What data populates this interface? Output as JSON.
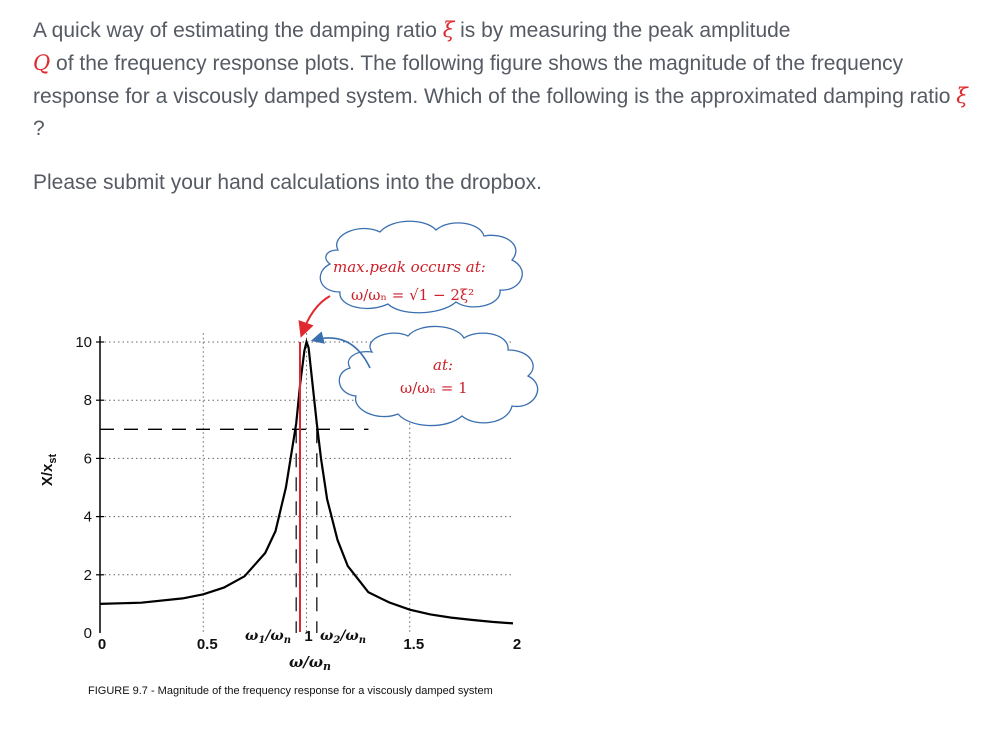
{
  "question": {
    "part1": "A quick way of estimating the damping ratio ",
    "xi_symbol": "ξ",
    "part2": " is by measuring the peak amplitude",
    "q_symbol": "Q",
    "part3": " of the frequency response plots. The following figure shows the magnitude of the frequency response for a viscously damped system. Which of the following is the approximated damping ratio ",
    "xi_symbol2": "ξ",
    "part4": " ?"
  },
  "instruction": "Please submit your hand calculations into the dropbox.",
  "figure": {
    "y_axis_label": "X/x",
    "y_axis_sub": "st",
    "x_axis_label": "ω/ω",
    "x_axis_sub": "n",
    "x_tick_omega1": "ω",
    "x_tick_omega1_sub": "1",
    "x_tick_omega1_den": "/ω",
    "x_tick_omega1_den_sub": "n",
    "x_tick_omega2": "ω",
    "x_tick_omega2_sub": "2",
    "x_tick_omega2_den": "/ω",
    "x_tick_omega2_den_sub": "n",
    "caption": "FIGURE 9.7 - Magnitude of the frequency response for a viscously damped system",
    "cloud_peak_line1": "max.peak occurs at:",
    "cloud_peak_line2": "ω/ωₙ = √1 − 2ξ²",
    "cloud_at_line1": "at:",
    "cloud_at_line2": "ω/ωₙ = 1",
    "colors": {
      "curve": "#000000",
      "annotation": "#e0282e",
      "cloud_outline": "#3a6fb0",
      "text": "#555a63"
    }
  },
  "chart_data": {
    "type": "line",
    "title": "",
    "xlabel": "ω/ωn",
    "ylabel": "X/xst",
    "xlim": [
      0,
      2
    ],
    "ylim": [
      0,
      10
    ],
    "x_ticks": [
      "0",
      "0.5",
      "1",
      "1.5",
      "2"
    ],
    "y_ticks": [
      "0",
      "2",
      "4",
      "6",
      "8",
      "10"
    ],
    "dashed_lines_y": [
      7
    ],
    "marked_x": [
      0.95,
      1.05
    ],
    "series": [
      {
        "x": [
          0,
          0.2,
          0.4,
          0.5,
          0.6,
          0.7,
          0.8,
          0.85,
          0.9,
          0.93,
          0.95,
          0.97,
          0.99,
          1.0,
          1.01,
          1.03,
          1.05,
          1.07,
          1.1,
          1.15,
          1.2,
          1.3,
          1.4,
          1.5,
          1.6,
          1.7,
          1.8,
          1.9,
          2.0
        ],
        "y": [
          1.0,
          1.04,
          1.19,
          1.33,
          1.56,
          1.95,
          2.75,
          3.5,
          5.0,
          6.3,
          7.2,
          8.6,
          9.7,
          10.0,
          9.8,
          8.5,
          7.2,
          6.0,
          4.6,
          3.2,
          2.3,
          1.4,
          1.05,
          0.8,
          0.64,
          0.53,
          0.45,
          0.38,
          0.33
        ]
      }
    ]
  }
}
